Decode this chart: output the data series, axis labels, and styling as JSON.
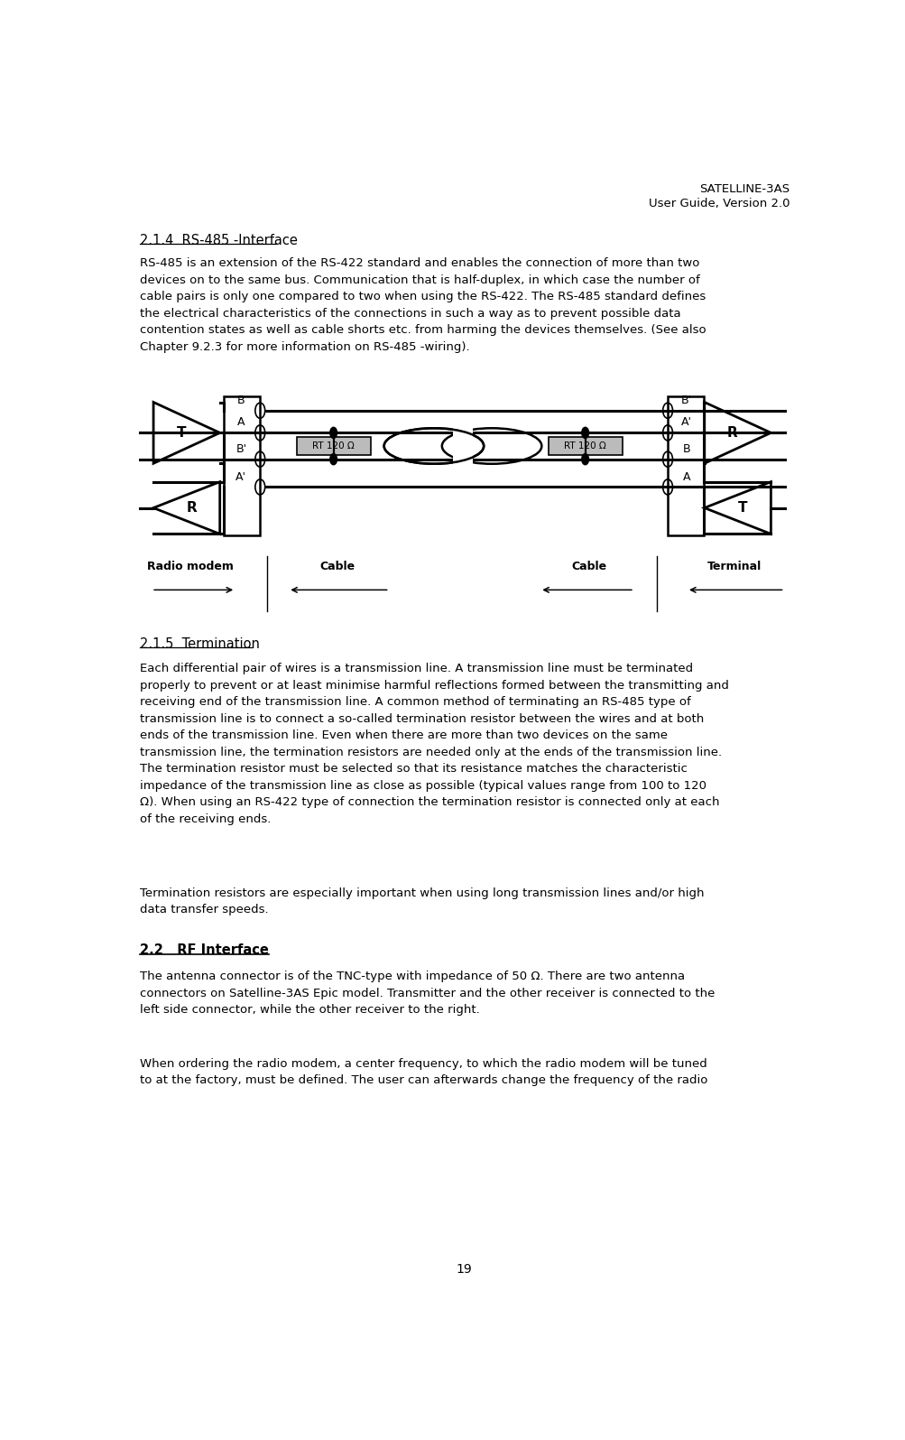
{
  "header_line1": "SATELLINE-3AS",
  "header_line2": "User Guide, Version 2.0",
  "section_214_title": "2.1.4  RS-485 -Interface",
  "section_215_title": "2.1.5  Termination",
  "section_22_title": "2.2   RF Interface",
  "body_214": "RS-485 is an extension of the RS-422 standard and enables the connection of more than two\ndevices on to the same bus. Communication that is half-duplex, in which case the number of\ncable pairs is only one compared to two when using the RS-422. The RS-485 standard defines\nthe electrical characteristics of the connections in such a way as to prevent possible data\ncontention states as well as cable shorts etc. from harming the devices themselves. (See also\nChapter 9.2.3 for more information on RS-485 -wiring).",
  "body_215a": "Each differential pair of wires is a transmission line. A transmission line must be terminated\nproperly to prevent or at least minimise harmful reflections formed between the transmitting and\nreceiving end of the transmission line. A common method of terminating an RS-485 type of\ntransmission line is to connect a so-called termination resistor between the wires and at both\nends of the transmission line. Even when there are more than two devices on the same\ntransmission line, the termination resistors are needed only at the ends of the transmission line.\nThe termination resistor must be selected so that its resistance matches the characteristic\nimpedance of the transmission line as close as possible (typical values range from 100 to 120\nΩ). When using an RS-422 type of connection the termination resistor is connected only at each\nof the receiving ends.",
  "body_215b": "Termination resistors are especially important when using long transmission lines and/or high\ndata transfer speeds.",
  "body_22a": "The antenna connector is of the TNC-type with impedance of 50 Ω. There are two antenna\nconnectors on Satelline-3AS Epic model. Transmitter and the other receiver is connected to the\nleft side connector, while the other receiver to the right.",
  "body_22b": "When ordering the radio modem, a center frequency, to which the radio modem will be tuned\nto at the factory, must be defined. The user can afterwards change the frequency of the radio",
  "page_number": "19",
  "bg_color": "#ffffff",
  "text_color": "#000000",
  "lbl_radio_modem": "Radio modem",
  "lbl_cable": "Cable",
  "lbl_terminal": "Terminal",
  "lbl_rt_left": "RT 120 Ω",
  "lbl_rt_right": "RT 120 Ω"
}
